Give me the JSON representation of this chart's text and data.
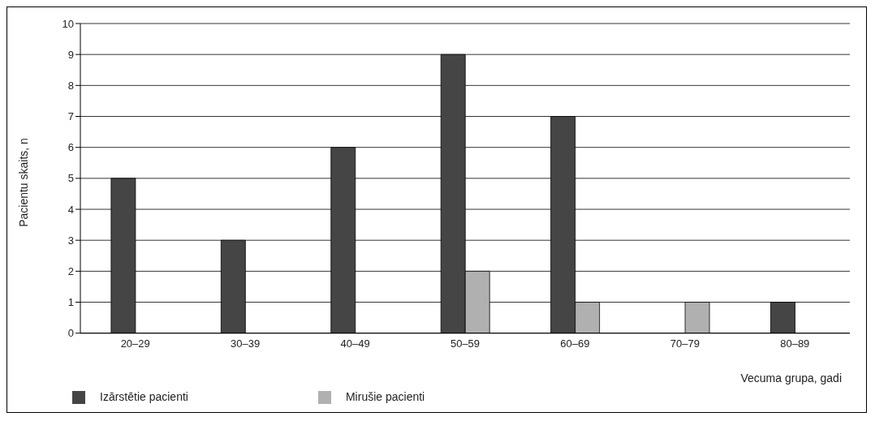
{
  "chart_data": {
    "type": "bar",
    "xlabel": "Vecuma grupa, gadi",
    "ylabel": "Pacientu skaits, n",
    "categories": [
      "20–29",
      "30–39",
      "40–49",
      "50–59",
      "60–69",
      "70–79",
      "80–89"
    ],
    "series": [
      {
        "name": "Izārstētie pacienti",
        "color": "#454545",
        "values": [
          5,
          3,
          6,
          9,
          7,
          0,
          1
        ]
      },
      {
        "name": "Mirušie pacienti",
        "color": "#b0b0b0",
        "values": [
          0,
          0,
          0,
          2,
          1,
          1,
          0
        ]
      }
    ],
    "ylim": [
      0,
      10
    ],
    "yticks": [
      0,
      1,
      2,
      3,
      4,
      5,
      6,
      7,
      8,
      9,
      10
    ],
    "grid": "y",
    "legend": "bottom left"
  }
}
